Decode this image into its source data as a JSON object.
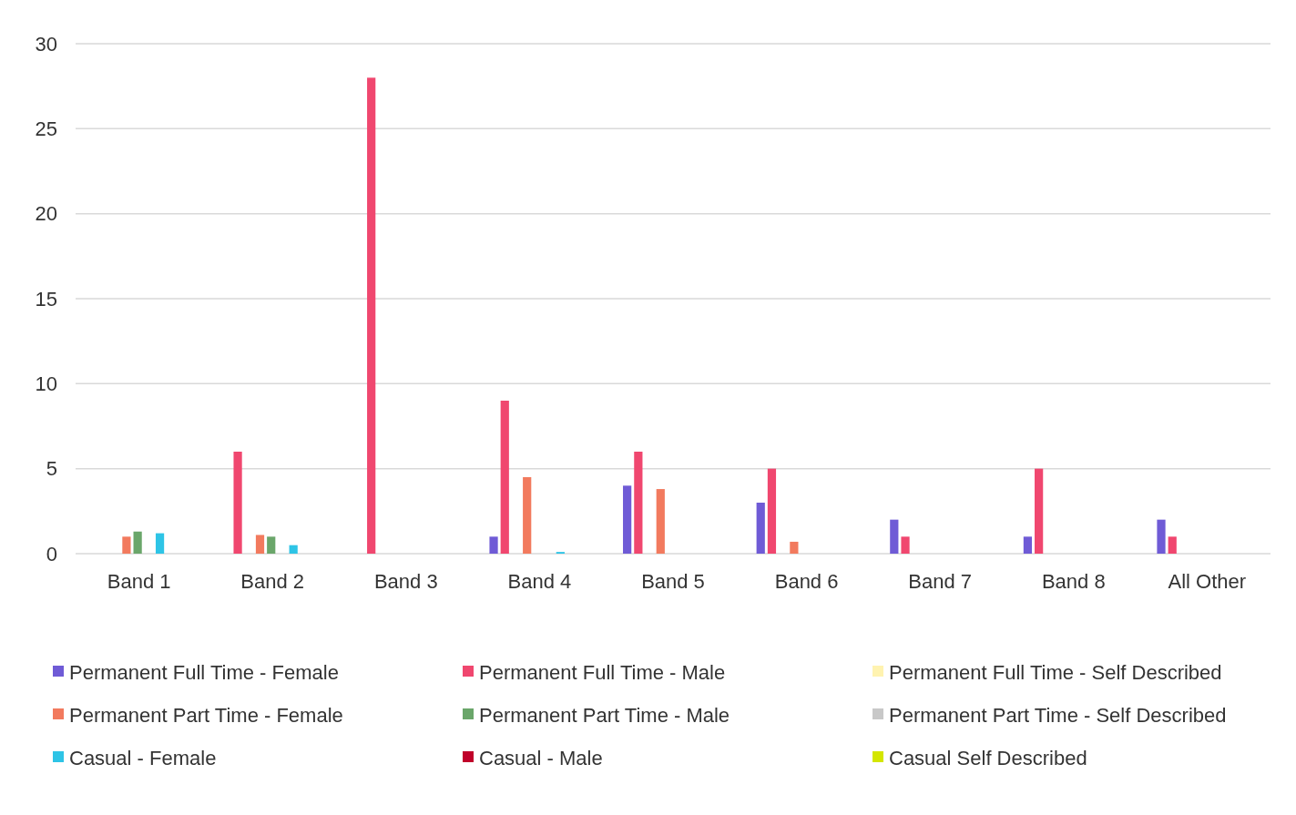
{
  "chart_data": {
    "type": "bar",
    "categories": [
      "Band 1",
      "Band 2",
      "Band 3",
      "Band 4",
      "Band 5",
      "Band 6",
      "Band 7",
      "Band 8",
      "All Other"
    ],
    "series": [
      {
        "name": "Permanent Full Time - Female",
        "color": "#6f5bd6",
        "values": [
          0,
          0,
          0,
          1,
          4,
          3,
          2,
          1,
          2
        ]
      },
      {
        "name": "Permanent Full Time - Male",
        "color": "#f0476f",
        "values": [
          0,
          6,
          28,
          9,
          6,
          5,
          1,
          5,
          1
        ]
      },
      {
        "name": "Permanent Full Time - Self Described",
        "color": "#fff3b0",
        "values": [
          0,
          0,
          0,
          0,
          0,
          0,
          0,
          0,
          0
        ]
      },
      {
        "name": "Permanent Part Time - Female",
        "color": "#f27a5e",
        "values": [
          1,
          1.1,
          0,
          4.5,
          3.8,
          0.7,
          0,
          0,
          0
        ]
      },
      {
        "name": "Permanent Part Time - Male",
        "color": "#6aa66a",
        "values": [
          1.3,
          1,
          0,
          0,
          0,
          0,
          0,
          0,
          0
        ]
      },
      {
        "name": "Permanent Part Time - Self Described",
        "color": "#c8c8c8",
        "values": [
          0,
          0,
          0,
          0,
          0,
          0,
          0,
          0,
          0
        ]
      },
      {
        "name": "Casual - Female",
        "color": "#2ec4e6",
        "values": [
          1.2,
          0.5,
          0,
          0.1,
          0,
          0,
          0,
          0,
          0
        ]
      },
      {
        "name": "Casual - Male",
        "color": "#c0002a",
        "values": [
          0,
          0,
          0,
          0,
          0,
          0,
          0,
          0,
          0
        ]
      },
      {
        "name": "Casual Self Described",
        "color": "#d4e600",
        "values": [
          0,
          0,
          0,
          0,
          0,
          0,
          0,
          0,
          0
        ]
      }
    ],
    "ylim": [
      0,
      30
    ],
    "yticks": [
      0,
      5,
      10,
      15,
      20,
      25,
      30
    ],
    "grid": "y",
    "legend": "bottom"
  }
}
